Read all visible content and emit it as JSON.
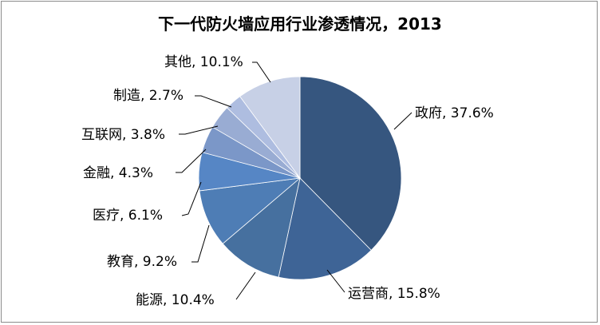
{
  "chart_data": {
    "type": "pie",
    "title": "下一代防火墙应用行业渗透情况，2013",
    "categories": [
      "政府",
      "运营商",
      "能源",
      "教育",
      "医疗",
      "金融",
      "互联网",
      "制造",
      "其他"
    ],
    "values": [
      37.6,
      15.8,
      10.4,
      9.2,
      6.1,
      4.3,
      3.8,
      2.7,
      10.1
    ],
    "labels": [
      "政府, 37.6%",
      "运营商, 15.8%",
      "能源, 10.4%",
      "教育, 9.2%",
      "医疗, 6.1%",
      "金融, 4.3%",
      "互联网, 3.8%",
      "制造, 2.7%",
      "其他, 10.1%"
    ],
    "colors": [
      "#36567f",
      "#3e6496",
      "#46709f",
      "#4e7db5",
      "#5686c5",
      "#7b97c8",
      "#99acd3",
      "#aebde0",
      "#c7d0e6"
    ],
    "start_angle": "12 o'clock",
    "direction": "clockwise",
    "legend": "none"
  }
}
